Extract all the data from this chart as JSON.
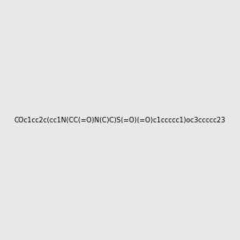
{
  "smiles": "COc1cc2c(cc1N(CC(=O)N(C)C)S(=O)(=O)c1ccccc1)oc3ccccc23",
  "image_size": 300,
  "background_color": "#e8e8e8",
  "bond_color": "#4a9a8a",
  "atom_colors": {
    "O": "#ff0000",
    "N": "#0000ff",
    "S": "#cccc00",
    "C": "#4a9a8a"
  },
  "title": ""
}
